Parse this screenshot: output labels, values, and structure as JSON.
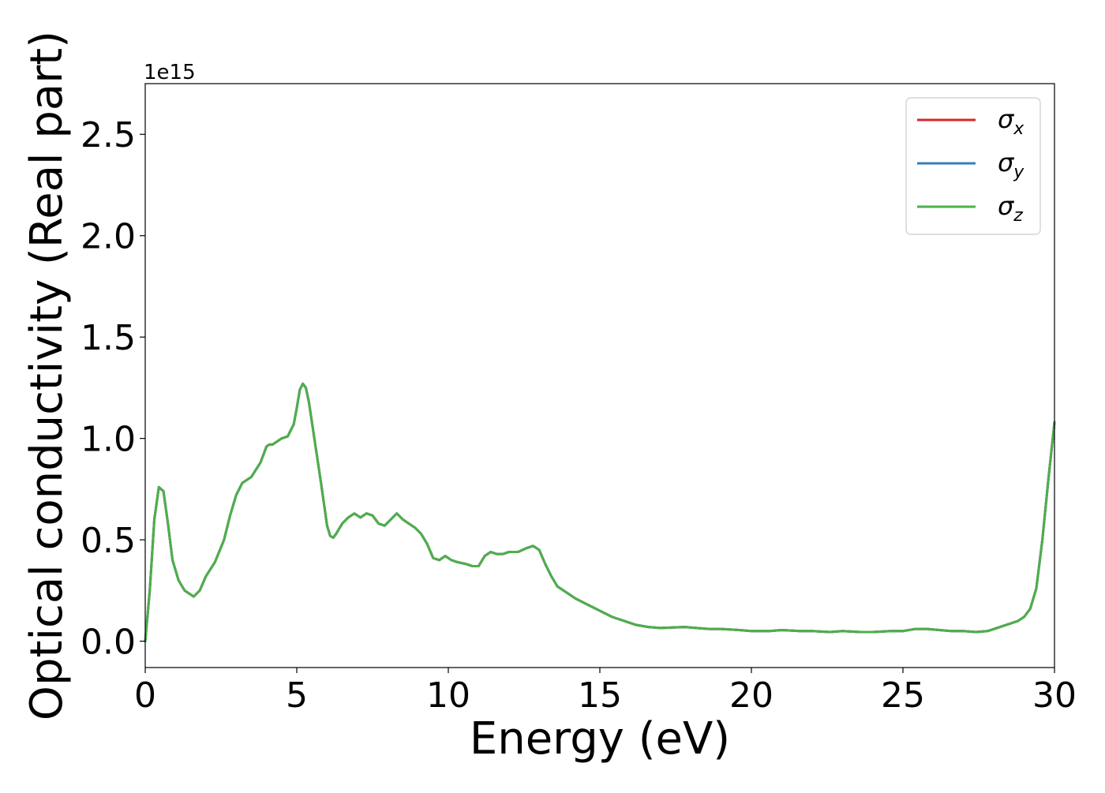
{
  "chart_data": {
    "type": "line",
    "xlabel": "Energy (eV)",
    "ylabel": "Optical conductivity (Real part)",
    "y_offset_label": "1e15",
    "xlim": [
      0,
      30
    ],
    "ylim": [
      -0.13,
      2.75
    ],
    "x_ticks": [
      0,
      5,
      10,
      15,
      20,
      25,
      30
    ],
    "x_tick_labels": [
      "0",
      "5",
      "10",
      "15",
      "20",
      "25",
      "30"
    ],
    "y_ticks": [
      0.0,
      0.5,
      1.0,
      1.5,
      2.0,
      2.5
    ],
    "y_tick_labels": [
      "0.0",
      "0.5",
      "1.0",
      "1.5",
      "2.0",
      "2.5"
    ],
    "grid": false,
    "legend_position": "top-right",
    "x": [
      0,
      0.15,
      0.3,
      0.45,
      0.6,
      0.75,
      0.9,
      1.1,
      1.3,
      1.6,
      1.8,
      2.0,
      2.3,
      2.6,
      2.8,
      3.0,
      3.2,
      3.5,
      3.8,
      4.0,
      4.1,
      4.2,
      4.4,
      4.5,
      4.7,
      4.9,
      5.0,
      5.1,
      5.2,
      5.3,
      5.4,
      5.6,
      5.8,
      6.0,
      6.1,
      6.2,
      6.3,
      6.5,
      6.7,
      6.9,
      7.1,
      7.3,
      7.5,
      7.7,
      7.9,
      8.1,
      8.3,
      8.5,
      8.7,
      8.9,
      9.1,
      9.3,
      9.5,
      9.7,
      9.9,
      10.1,
      10.3,
      10.6,
      10.8,
      11.0,
      11.2,
      11.4,
      11.6,
      11.8,
      12.0,
      12.3,
      12.6,
      12.8,
      13.0,
      13.2,
      13.4,
      13.6,
      13.9,
      14.2,
      14.6,
      15.0,
      15.4,
      15.8,
      16.2,
      16.6,
      17.0,
      17.8,
      18.6,
      19.0,
      19.6,
      20.0,
      20.6,
      21.0,
      21.6,
      22.0,
      22.6,
      23.0,
      23.6,
      24.0,
      24.6,
      25.0,
      25.4,
      25.8,
      26.2,
      26.6,
      27.0,
      27.4,
      27.8,
      28.0,
      28.4,
      28.8,
      29.0,
      29.2,
      29.4,
      29.6,
      29.8,
      30.0
    ],
    "series": [
      {
        "name": "σx",
        "color": "#d62728",
        "values": [
          0.0,
          0.25,
          0.6,
          0.76,
          0.74,
          0.58,
          0.4,
          0.3,
          0.25,
          0.22,
          0.25,
          0.32,
          0.39,
          0.5,
          0.62,
          0.72,
          0.78,
          0.81,
          0.88,
          0.96,
          0.97,
          0.97,
          0.99,
          1.0,
          1.01,
          1.07,
          1.15,
          1.24,
          1.27,
          1.25,
          1.18,
          0.98,
          0.78,
          0.57,
          0.52,
          0.51,
          0.53,
          0.58,
          0.61,
          0.63,
          0.61,
          0.63,
          0.62,
          0.58,
          0.57,
          0.6,
          0.63,
          0.6,
          0.58,
          0.56,
          0.53,
          0.48,
          0.41,
          0.4,
          0.42,
          0.4,
          0.39,
          0.38,
          0.37,
          0.37,
          0.42,
          0.44,
          0.43,
          0.43,
          0.44,
          0.44,
          0.46,
          0.47,
          0.45,
          0.38,
          0.32,
          0.27,
          0.24,
          0.21,
          0.18,
          0.15,
          0.12,
          0.1,
          0.08,
          0.07,
          0.065,
          0.07,
          0.06,
          0.06,
          0.055,
          0.05,
          0.05,
          0.055,
          0.05,
          0.05,
          0.045,
          0.05,
          0.045,
          0.045,
          0.05,
          0.05,
          0.06,
          0.06,
          0.055,
          0.05,
          0.05,
          0.045,
          0.05,
          0.06,
          0.08,
          0.1,
          0.12,
          0.16,
          0.26,
          0.5,
          0.8,
          1.08
        ]
      },
      {
        "name": "σy",
        "color": "#377eb8",
        "values": [
          0.0,
          0.25,
          0.6,
          0.76,
          0.74,
          0.58,
          0.4,
          0.3,
          0.25,
          0.22,
          0.25,
          0.32,
          0.39,
          0.5,
          0.62,
          0.72,
          0.78,
          0.81,
          0.88,
          0.96,
          0.97,
          0.97,
          0.99,
          1.0,
          1.01,
          1.07,
          1.15,
          1.24,
          1.27,
          1.25,
          1.18,
          0.98,
          0.78,
          0.57,
          0.52,
          0.51,
          0.53,
          0.58,
          0.61,
          0.63,
          0.61,
          0.63,
          0.62,
          0.58,
          0.57,
          0.6,
          0.63,
          0.6,
          0.58,
          0.56,
          0.53,
          0.48,
          0.41,
          0.4,
          0.42,
          0.4,
          0.39,
          0.38,
          0.37,
          0.37,
          0.42,
          0.44,
          0.43,
          0.43,
          0.44,
          0.44,
          0.46,
          0.47,
          0.45,
          0.38,
          0.32,
          0.27,
          0.24,
          0.21,
          0.18,
          0.15,
          0.12,
          0.1,
          0.08,
          0.07,
          0.065,
          0.07,
          0.06,
          0.06,
          0.055,
          0.05,
          0.05,
          0.055,
          0.05,
          0.05,
          0.045,
          0.05,
          0.045,
          0.045,
          0.05,
          0.05,
          0.06,
          0.06,
          0.055,
          0.05,
          0.05,
          0.045,
          0.05,
          0.06,
          0.08,
          0.1,
          0.12,
          0.16,
          0.26,
          0.5,
          0.8,
          1.08
        ]
      },
      {
        "name": "σz",
        "color": "#4daf4a",
        "values": [
          0.0,
          0.25,
          0.6,
          0.76,
          0.74,
          0.58,
          0.4,
          0.3,
          0.25,
          0.22,
          0.25,
          0.32,
          0.39,
          0.5,
          0.62,
          0.72,
          0.78,
          0.81,
          0.88,
          0.96,
          0.97,
          0.97,
          0.99,
          1.0,
          1.01,
          1.07,
          1.15,
          1.24,
          1.27,
          1.25,
          1.18,
          0.98,
          0.78,
          0.57,
          0.52,
          0.51,
          0.53,
          0.58,
          0.61,
          0.63,
          0.61,
          0.63,
          0.62,
          0.58,
          0.57,
          0.6,
          0.63,
          0.6,
          0.58,
          0.56,
          0.53,
          0.48,
          0.41,
          0.4,
          0.42,
          0.4,
          0.39,
          0.38,
          0.37,
          0.37,
          0.42,
          0.44,
          0.43,
          0.43,
          0.44,
          0.44,
          0.46,
          0.47,
          0.45,
          0.38,
          0.32,
          0.27,
          0.24,
          0.21,
          0.18,
          0.15,
          0.12,
          0.1,
          0.08,
          0.07,
          0.065,
          0.07,
          0.06,
          0.06,
          0.055,
          0.05,
          0.05,
          0.055,
          0.05,
          0.05,
          0.045,
          0.05,
          0.045,
          0.045,
          0.05,
          0.05,
          0.06,
          0.06,
          0.055,
          0.05,
          0.05,
          0.045,
          0.05,
          0.06,
          0.08,
          0.1,
          0.12,
          0.16,
          0.26,
          0.5,
          0.8,
          1.08
        ]
      }
    ],
    "legend": [
      {
        "symbol": "σ",
        "sub": "x",
        "color": "#d62728"
      },
      {
        "symbol": "σ",
        "sub": "y",
        "color": "#377eb8"
      },
      {
        "symbol": "σ",
        "sub": "z",
        "color": "#4daf4a"
      }
    ]
  }
}
